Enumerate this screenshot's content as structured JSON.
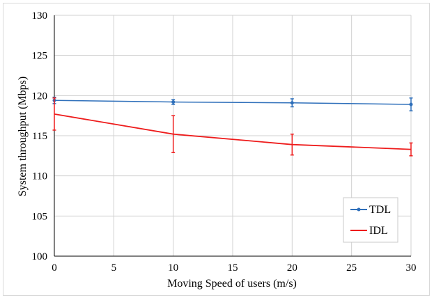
{
  "chart_data": {
    "type": "line",
    "title": "",
    "xlabel": "Moving Speed of users (m/s)",
    "ylabel": "System throughput (Mbps)",
    "xlim": [
      0,
      30
    ],
    "ylim": [
      100,
      130
    ],
    "xticks": [
      0,
      5,
      10,
      15,
      20,
      25,
      30
    ],
    "yticks": [
      100,
      105,
      110,
      115,
      120,
      125,
      130
    ],
    "grid": true,
    "legend_position": "bottom-right",
    "x": [
      0,
      10,
      20,
      30
    ],
    "series": [
      {
        "name": "TDL",
        "color": "#2e6fba",
        "marker": "circle",
        "values": [
          119.4,
          119.2,
          119.1,
          118.9
        ],
        "error": [
          0.4,
          0.3,
          0.5,
          0.8
        ]
      },
      {
        "name": "IDL",
        "color": "#ee1c1c",
        "marker": "none",
        "values": [
          117.7,
          115.2,
          113.9,
          113.3
        ],
        "error": [
          2.0,
          2.3,
          1.3,
          0.8
        ]
      }
    ]
  }
}
